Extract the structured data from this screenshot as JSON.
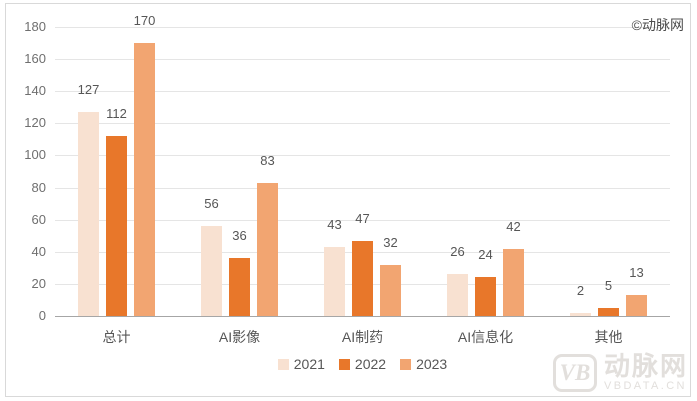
{
  "watermark_top": "©动脉网",
  "logo": {
    "mark": "VB",
    "name": "动脉网",
    "domain": "VBDATA.CN"
  },
  "chart_data": {
    "type": "bar",
    "title": "",
    "xlabel": "",
    "ylabel": "",
    "categories": [
      "总计",
      "AI影像",
      "AI制药",
      "AI信息化",
      "其他"
    ],
    "series": [
      {
        "name": "2021",
        "color": "#f8e1d1",
        "values": [
          127,
          56,
          43,
          26,
          2
        ]
      },
      {
        "name": "2022",
        "color": "#e8772a",
        "values": [
          112,
          36,
          47,
          24,
          5
        ]
      },
      {
        "name": "2023",
        "color": "#f2a571",
        "values": [
          170,
          83,
          32,
          42,
          13
        ]
      }
    ],
    "ylim": [
      0,
      180
    ],
    "ytick_step": 20,
    "yticks": [
      0,
      20,
      40,
      60,
      80,
      100,
      120,
      140,
      160,
      180
    ],
    "grid": true,
    "legend_position": "bottom"
  }
}
